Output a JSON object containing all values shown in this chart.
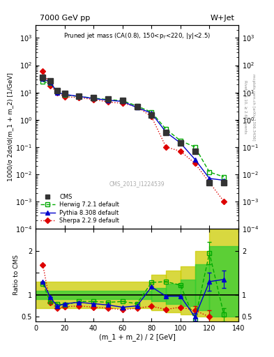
{
  "title_left": "7000 GeV pp",
  "title_right": "W+Jet",
  "plot_title": "Pruned jet mass (CA(0.8), 150<p$_T$<220, |y|<2.5)",
  "watermark": "CMS_2013_I1224539",
  "ylabel_main": "1000/σ 2dσ/d(m_1 + m_2) [1/GeV]",
  "ylabel_ratio": "Ratio to CMS",
  "xlabel": "(m_1 + m_2) / 2 [GeV]",
  "right_label": "Rivet 3.1.10, ≥ 2.6M events",
  "right_label2": "mcplots.cern.ch [arXiv:1306.3436]",
  "cms_x": [
    5,
    10,
    15,
    20,
    30,
    40,
    50,
    60,
    70,
    80,
    90,
    100,
    110,
    120,
    130
  ],
  "cms_y": [
    35,
    26,
    12,
    9,
    7.5,
    6.5,
    5.8,
    5.2,
    3.0,
    1.5,
    0.35,
    0.14,
    0.07,
    0.005,
    0.005
  ],
  "herwig_x": [
    5,
    10,
    15,
    20,
    30,
    40,
    50,
    60,
    70,
    80,
    90,
    100,
    110,
    120,
    130
  ],
  "herwig_y": [
    25,
    22,
    11,
    8,
    7.2,
    6.2,
    5.5,
    5.0,
    3.2,
    1.9,
    0.45,
    0.17,
    0.1,
    0.012,
    0.008
  ],
  "pythia_x": [
    5,
    10,
    15,
    20,
    30,
    40,
    50,
    60,
    70,
    80,
    90,
    100,
    110,
    120,
    130
  ],
  "pythia_y": [
    32,
    24,
    10,
    8.5,
    7.2,
    6.0,
    5.2,
    4.7,
    2.8,
    1.75,
    0.35,
    0.14,
    0.035,
    0.007,
    0.006
  ],
  "sherpa_x": [
    5,
    10,
    15,
    20,
    30,
    40,
    50,
    60,
    70,
    80,
    90,
    100,
    110,
    120,
    130
  ],
  "sherpa_y": [
    60,
    18,
    10,
    7,
    6.5,
    5.5,
    4.5,
    4.0,
    3.0,
    1.3,
    0.1,
    0.07,
    0.025,
    0.005,
    0.001
  ],
  "herwig_ratio_x": [
    5,
    10,
    15,
    20,
    30,
    40,
    50,
    60,
    70,
    80,
    90,
    100,
    110,
    120,
    130
  ],
  "herwig_ratio_y": [
    1.25,
    0.85,
    0.8,
    0.77,
    0.85,
    0.85,
    0.83,
    0.85,
    0.8,
    1.28,
    1.3,
    1.22,
    0.43,
    1.95,
    0.55
  ],
  "pythia_ratio_x": [
    5,
    10,
    15,
    20,
    30,
    40,
    50,
    60,
    70,
    80,
    90,
    100,
    110,
    120,
    130
  ],
  "pythia_ratio_y": [
    1.3,
    0.95,
    0.74,
    0.8,
    0.83,
    0.8,
    0.77,
    0.72,
    0.75,
    1.18,
    0.97,
    0.97,
    0.5,
    1.3,
    1.35
  ],
  "sherpa_ratio_x": [
    5,
    10,
    15,
    20,
    30,
    40,
    50,
    60,
    70,
    80,
    90,
    100,
    110,
    120
  ],
  "sherpa_ratio_y": [
    1.68,
    0.82,
    0.7,
    0.73,
    0.75,
    0.72,
    0.7,
    0.66,
    0.7,
    0.74,
    0.67,
    0.72,
    0.65,
    0.5
  ],
  "cms_color": "#333333",
  "herwig_color": "#00aa00",
  "pythia_color": "#0000cc",
  "sherpa_color": "#dd0000",
  "xlim": [
    0,
    140
  ],
  "ylim_main": [
    0.0001,
    3000.0
  ],
  "ylim_ratio": [
    0.4,
    2.5
  ],
  "inner_band_color": "#33cc33",
  "outer_band_color": "#cccc00",
  "fig_width": 3.93,
  "fig_height": 5.12,
  "dpi": 100
}
